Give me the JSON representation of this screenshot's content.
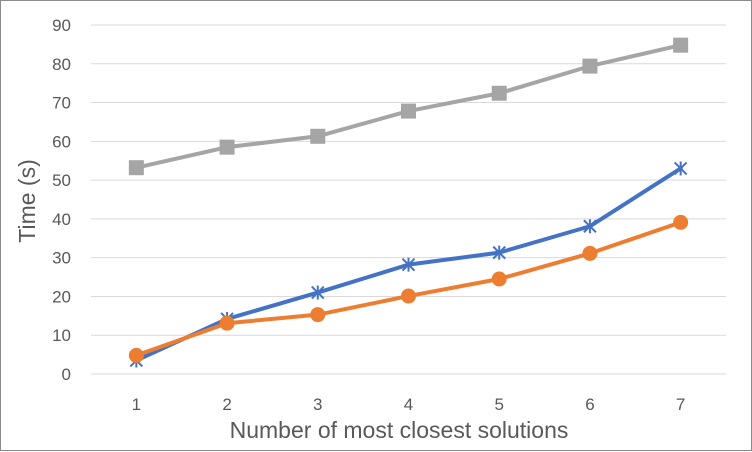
{
  "chart_data": {
    "type": "line",
    "title": "",
    "xlabel": "Number of most closest solutions",
    "ylabel": "Time (s)",
    "categories": [
      "1",
      "2",
      "3",
      "4",
      "5",
      "6",
      "7"
    ],
    "ylim": [
      0,
      90
    ],
    "yticks": [
      0,
      10,
      20,
      30,
      40,
      50,
      60,
      70,
      80,
      90
    ],
    "grid": true,
    "legend": "none",
    "series": [
      {
        "color": "#4472C4",
        "marker": "asterisk",
        "values": [
          3.5,
          14.2,
          21,
          28.2,
          31.3,
          38.1,
          53
        ]
      },
      {
        "color": "#ED7D31",
        "marker": "circle",
        "values": [
          4.8,
          13.1,
          15.3,
          20.1,
          24.5,
          31.1,
          39.1
        ]
      },
      {
        "color": "#A5A5A5",
        "marker": "square",
        "values": [
          53.2,
          58.5,
          61.3,
          67.8,
          72.4,
          79.4,
          84.8
        ]
      }
    ]
  }
}
